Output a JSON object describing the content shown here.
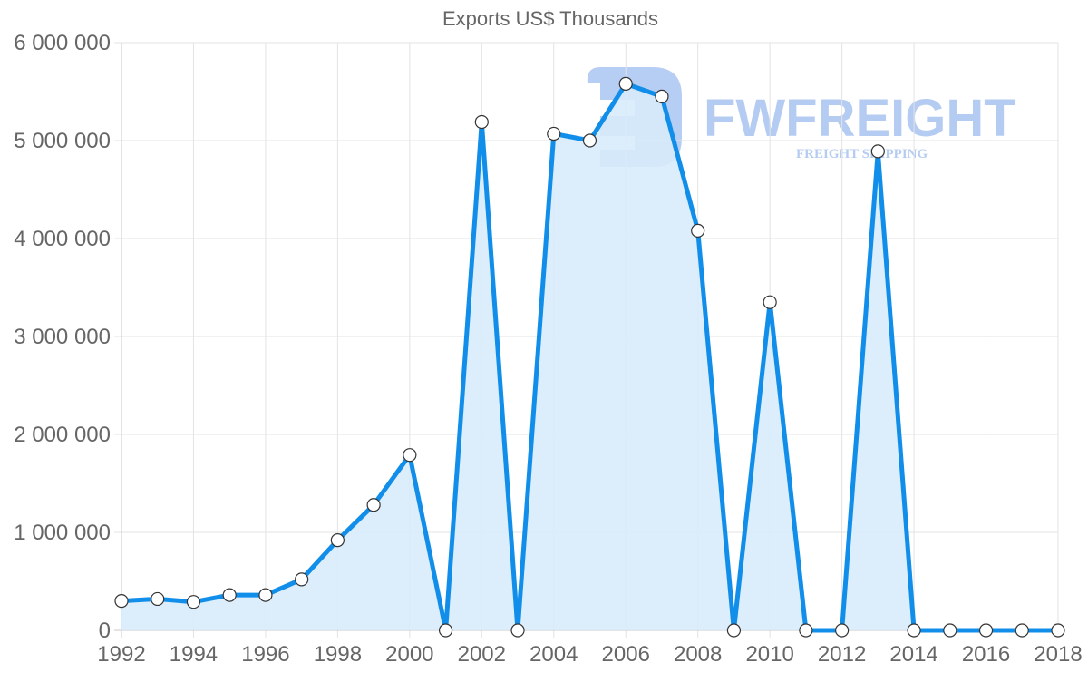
{
  "chart_data": {
    "type": "line",
    "title": "Exports US$ Thousands",
    "xlabel": "",
    "ylabel": "",
    "ylim": [
      0,
      6000000
    ],
    "grid": true,
    "legend": "none",
    "fill": "area",
    "x": [
      1992,
      1993,
      1994,
      1995,
      1996,
      1997,
      1998,
      1999,
      2000,
      2001,
      2002,
      2003,
      2004,
      2005,
      2006,
      2007,
      2008,
      2009,
      2010,
      2011,
      2012,
      2013,
      2014,
      2015,
      2016,
      2017,
      2018
    ],
    "series": [
      {
        "name": "Exports US$ Thousands",
        "color": "#108ee9",
        "fill_color": "#d8ebfb",
        "values": [
          300000,
          320000,
          290000,
          360000,
          360000,
          520000,
          920000,
          1280000,
          1790000,
          0,
          5190000,
          0,
          5070000,
          5000000,
          5580000,
          5450000,
          4080000,
          0,
          3350000,
          0,
          0,
          4890000,
          0,
          0,
          0,
          0,
          0
        ]
      }
    ],
    "y_ticks": [
      "0",
      "1 000 000",
      "2 000 000",
      "3 000 000",
      "4 000 000",
      "5 000 000",
      "6 000 000"
    ],
    "x_tick_labels": [
      "1992",
      "1994",
      "1996",
      "1998",
      "2000",
      "2002",
      "2004",
      "2006",
      "2008",
      "2010",
      "2012",
      "2014",
      "2016",
      "2018"
    ]
  },
  "watermark": {
    "brand": "FWFREIGHT",
    "tagline": "FREIGHT SHIPPING"
  }
}
